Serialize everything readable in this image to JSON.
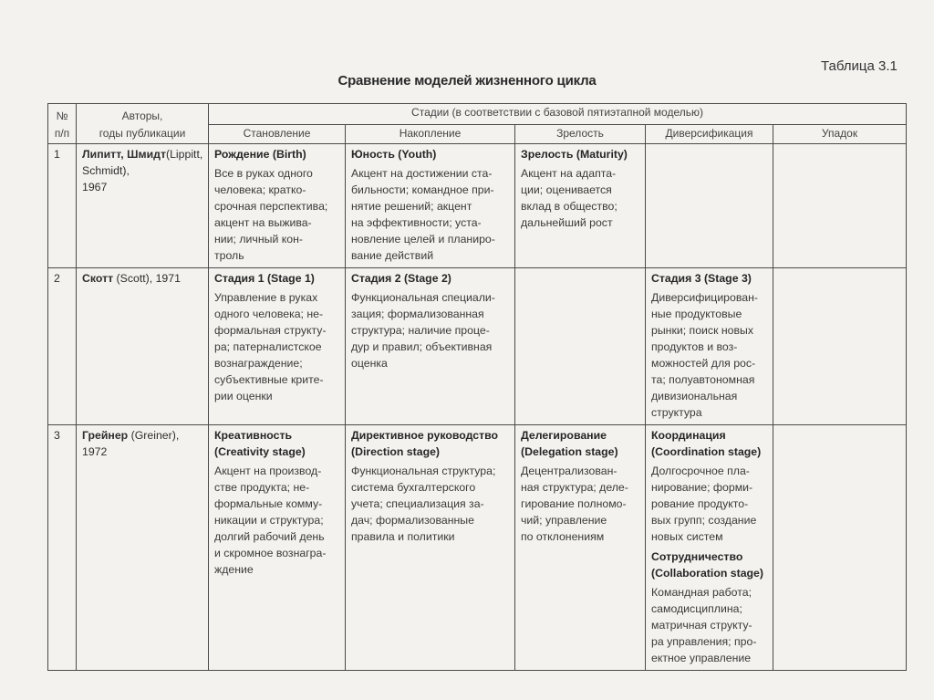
{
  "table_number": "Таблица 3.1",
  "title": "Сравнение моделей жизненного цикла",
  "header": {
    "num": "№\nп/п",
    "authors": "Авторы,\nгоды публикации",
    "stages_group": "Стадии (в соответствии с базовой пятиэтапной моделью)",
    "stages": [
      "Становление",
      "Накопление",
      "Зрелость",
      "Диверсификация",
      "Упадок"
    ]
  },
  "rows": [
    {
      "num": "1",
      "author_bold": "Липитт, Шмидт",
      "author_rest": "(Lippitt, Schmidt),\n1967",
      "cells": [
        {
          "title": "Рождение (Birth)",
          "text": "Все в руках одного\nчеловека; кратко-\nсрочная перспектива;\nакцент на выжива-\nнии; личный кон-\nтроль"
        },
        {
          "title": "Юность (Youth)",
          "text": "Акцент на достижении ста-\nбильности; командное при-\nнятие решений; акцент\nна эффективности; уста-\nновление целей и планиро-\nвание действий"
        },
        {
          "title": "Зрелость (Maturity)",
          "text": "Акцент на адапта-\nции; оценивается\nвклад в общество;\nдальнейший рост"
        },
        {
          "title": "",
          "text": ""
        },
        {
          "title": "",
          "text": ""
        }
      ]
    },
    {
      "num": "2",
      "author_bold": "Скотт",
      "author_rest": " (Scott), 1971",
      "cells": [
        {
          "title": "Стадия 1 (Stage 1)",
          "text": "Управление в руках\nодного человека; не-\nформальная структу-\nра; патерналистское\nвознаграждение;\nсубъективные крите-\nрии оценки"
        },
        {
          "title": "Стадия 2 (Stage 2)",
          "text": "Функциональная специали-\nзация; формализованная\nструктура; наличие проце-\nдур и правил; объективная\nоценка"
        },
        {
          "title": "",
          "text": ""
        },
        {
          "title": "Стадия 3 (Stage 3)",
          "text": "Диверсифицирован-\nные продуктовые\nрынки; поиск новых\nпродуктов и воз-\nможностей для рос-\nта; полуавтономная\nдивизиональная\nструктура"
        },
        {
          "title": "",
          "text": ""
        }
      ]
    },
    {
      "num": "3",
      "author_bold": "Грейнер",
      "author_rest": " (Greiner),\n1972",
      "cells": [
        {
          "title": "Креативность\n(Creativity stage)",
          "text": "Акцент на производ-\nстве продукта; не-\nформальные комму-\nникации и структура;\nдолгий рабочий день\nи скромное вознагра-\nждение"
        },
        {
          "title": "Директивное руководство\n(Direction stage)",
          "text": "Функциональная структура;\nсистема бухгалтерского\nучета; специализация за-\nдач; формализованные\nправила и политики"
        },
        {
          "title": "Делегирование\n(Delegation stage)",
          "text": "Децентрализован-\nная структура; деле-\nгирование полномо-\nчий; управление\nпо отклонениям"
        },
        {
          "title": "Координация\n(Coordination stage)",
          "text": "Долгосрочное пла-\nнирование; форми-\nрование продукто-\nвых групп; создание\nновых систем",
          "title2": "Сотрудничество\n(Collaboration stage)",
          "text2": "Командная работа;\nсамодисциплина;\nматричная структу-\nра управления; про-\nектное управление"
        },
        {
          "title": "",
          "text": ""
        }
      ]
    }
  ]
}
